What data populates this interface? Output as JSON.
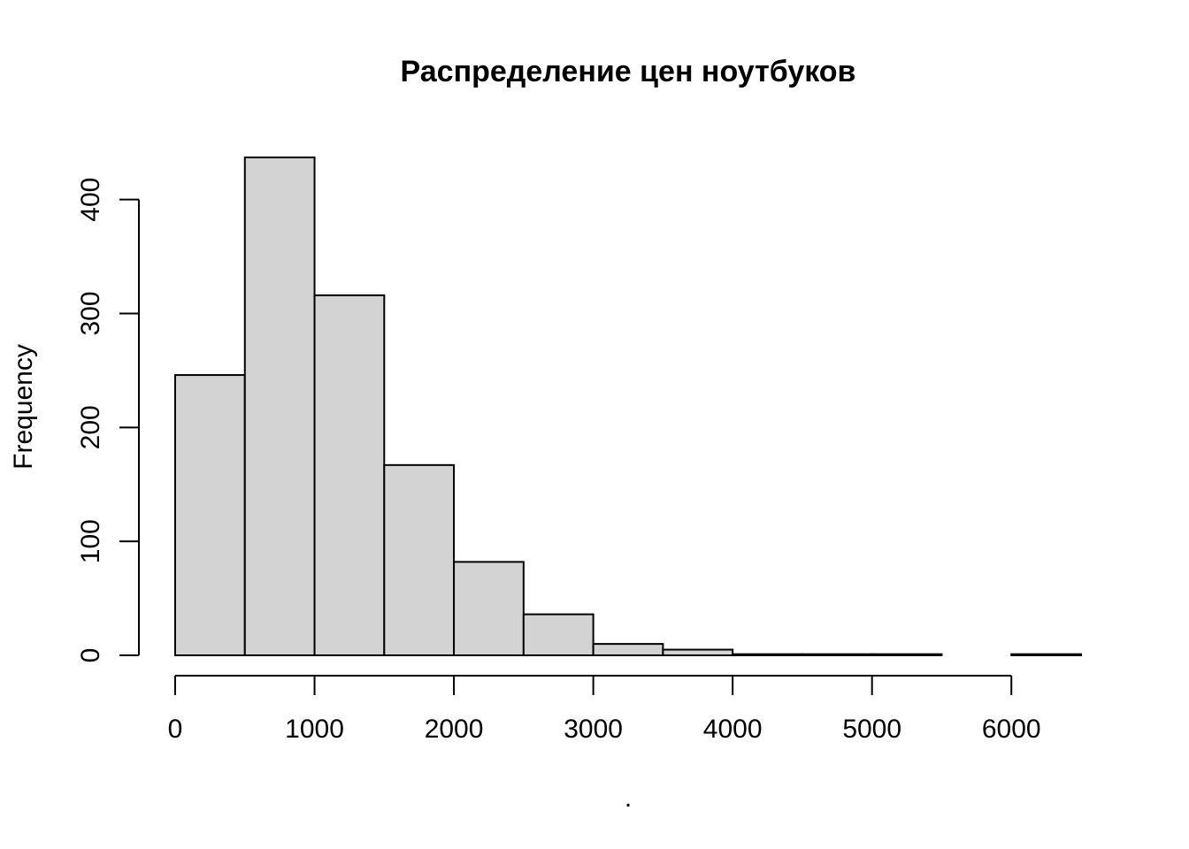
{
  "chart_data": {
    "type": "bar",
    "title": "Распределение цен ноутбуков",
    "xlabel": ".",
    "ylabel": "Frequency",
    "bin_edges": [
      0,
      500,
      1000,
      1500,
      2000,
      2500,
      3000,
      3500,
      4000,
      4500,
      5000,
      5500,
      6000,
      6500
    ],
    "values": [
      246,
      437,
      316,
      167,
      82,
      36,
      10,
      5,
      1,
      1,
      1,
      0,
      1
    ],
    "xlim": [
      0,
      6500
    ],
    "ylim": [
      0,
      437
    ],
    "x_ticks": [
      "0",
      "1000",
      "2000",
      "3000",
      "4000",
      "5000",
      "6000"
    ],
    "y_ticks": [
      "0",
      "100",
      "200",
      "300",
      "400"
    ],
    "grid": false,
    "bar_color": "#d3d3d3",
    "edge_color": "#000000"
  }
}
